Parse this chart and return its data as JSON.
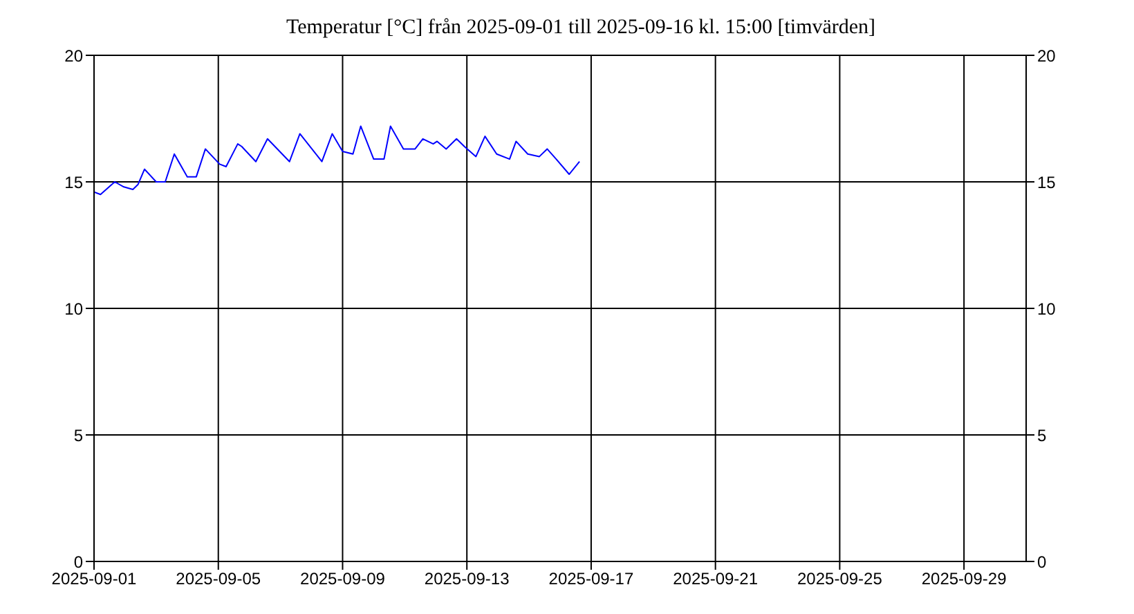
{
  "chart_data": {
    "type": "line",
    "title": "Temperatur [°C] från 2025-09-01 till 2025-09-16 kl. 15:00 [timvärden]",
    "x": [
      "2025-09-01T00:00",
      "2025-09-01T05:00",
      "2025-09-01T16:00",
      "2025-09-01T23:00",
      "2025-09-02T06:00",
      "2025-09-02T10:00",
      "2025-09-02T15:00",
      "2025-09-03T00:00",
      "2025-09-03T07:00",
      "2025-09-03T14:00",
      "2025-09-04T00:00",
      "2025-09-04T07:00",
      "2025-09-04T14:00",
      "2025-09-05T01:00",
      "2025-09-05T06:00",
      "2025-09-05T15:00",
      "2025-09-05T18:00",
      "2025-09-06T05:00",
      "2025-09-06T14:00",
      "2025-09-07T07:00",
      "2025-09-07T15:00",
      "2025-09-08T08:00",
      "2025-09-08T16:00",
      "2025-09-09T00:00",
      "2025-09-09T08:00",
      "2025-09-09T14:00",
      "2025-09-10T00:00",
      "2025-09-10T08:00",
      "2025-09-10T13:00",
      "2025-09-10T23:00",
      "2025-09-11T08:00",
      "2025-09-11T14:00",
      "2025-09-11T22:00",
      "2025-09-12T01:00",
      "2025-09-12T08:00",
      "2025-09-12T16:00",
      "2025-09-12T22:00",
      "2025-09-13T07:00",
      "2025-09-13T14:00",
      "2025-09-13T23:00",
      "2025-09-14T09:00",
      "2025-09-14T14:00",
      "2025-09-14T23:00",
      "2025-09-15T08:00",
      "2025-09-15T14:00",
      "2025-09-15T21:00",
      "2025-09-16T07:00",
      "2025-09-16T15:00"
    ],
    "series": [
      {
        "color": "#0000ff",
        "values": [
          14.6,
          14.5,
          15.0,
          14.8,
          14.7,
          14.9,
          15.5,
          15.0,
          15.0,
          16.1,
          15.2,
          15.2,
          16.3,
          15.7,
          15.6,
          16.5,
          16.4,
          15.8,
          16.7,
          15.8,
          16.9,
          15.8,
          16.9,
          16.2,
          16.1,
          17.2,
          15.9,
          15.9,
          17.2,
          16.3,
          16.3,
          16.7,
          16.5,
          16.6,
          16.3,
          16.7,
          16.4,
          16.0,
          16.8,
          16.1,
          15.9,
          16.6,
          16.1,
          16.0,
          16.3,
          15.9,
          15.3,
          15.8
        ]
      }
    ],
    "xlim": [
      "2025-09-01",
      "2025-10-01"
    ],
    "xticks": [
      "2025-09-01",
      "2025-09-05",
      "2025-09-09",
      "2025-09-13",
      "2025-09-17",
      "2025-09-21",
      "2025-09-25",
      "2025-09-29"
    ],
    "ylim": [
      0,
      20
    ],
    "yticks": [
      0,
      5,
      10,
      15,
      20
    ],
    "y2lim": [
      0,
      20
    ],
    "y2ticks": [
      0,
      5,
      10,
      15,
      20
    ],
    "grid": true,
    "legend": false,
    "marker": "none",
    "line_style": "solid"
  }
}
